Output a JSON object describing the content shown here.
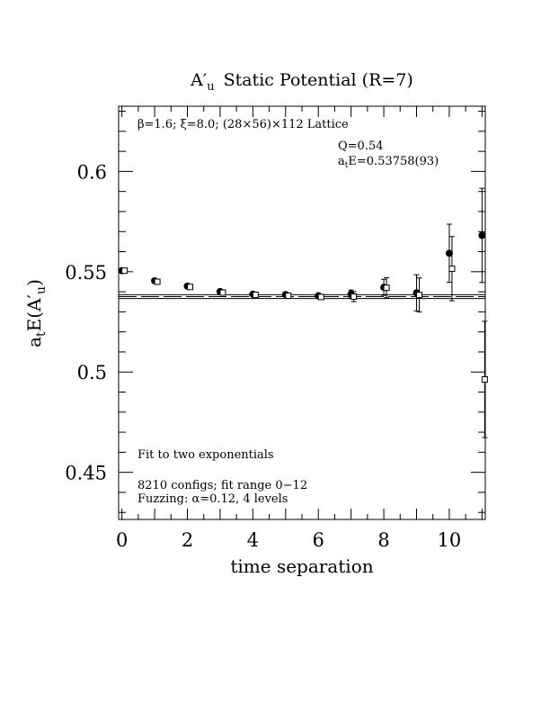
{
  "chart_data": {
    "type": "scatter",
    "title": "A′u Static Potential (R=7)",
    "title_main": "A′",
    "title_sub": "u",
    "title_rest": "Static Potential (R=7)",
    "xlabel": "time separation",
    "ylabel_main": "a",
    "ylabel_sub1": "t",
    "ylabel_mid": "E(A′",
    "ylabel_sub2": "u",
    "ylabel_end": ")",
    "xlim": [
      -0.1,
      11.1
    ],
    "ylim": [
      0.4265,
      0.6325
    ],
    "x_ticks": [
      0,
      2,
      4,
      6,
      8,
      10
    ],
    "y_ticks": [
      0.45,
      0.5,
      0.55,
      0.6
    ],
    "x_tick_labels": [
      "0",
      "2",
      "4",
      "6",
      "8",
      "10"
    ],
    "y_tick_labels": [
      "0.45",
      "0.5",
      "0.55",
      "0.6"
    ],
    "annotations": {
      "lattice": "β=1.6; ξ=8.0; (28×56)×112 Lattice",
      "q_value": "Q=0.54",
      "energy_prefix": "a",
      "energy_sub": "t",
      "energy_value": "E=0.53758(93)",
      "fit_desc": "Fit to two exponentials",
      "configs": "8210 configs; fit range 0−12",
      "fuzzing": "Fuzzing: α=0.12, 4 levels"
    },
    "fit": {
      "value": 0.53758,
      "error": 0.00093
    },
    "series": [
      {
        "marker": "filled-circle",
        "points": [
          {
            "x": 0,
            "y": 0.5505,
            "err": 0.0008
          },
          {
            "x": 1,
            "y": 0.5455,
            "err": 0.0008
          },
          {
            "x": 2,
            "y": 0.5428,
            "err": 0.0008
          },
          {
            "x": 3,
            "y": 0.5401,
            "err": 0.0008
          },
          {
            "x": 4,
            "y": 0.5388,
            "err": 0.0008
          },
          {
            "x": 5,
            "y": 0.5386,
            "err": 0.001
          },
          {
            "x": 6,
            "y": 0.538,
            "err": 0.0012
          },
          {
            "x": 7,
            "y": 0.5389,
            "err": 0.002
          },
          {
            "x": 8,
            "y": 0.5422,
            "err": 0.004
          },
          {
            "x": 9,
            "y": 0.5395,
            "err": 0.009
          },
          {
            "x": 10,
            "y": 0.5592,
            "err": 0.0145
          },
          {
            "x": 11,
            "y": 0.5681,
            "err": 0.0235
          }
        ]
      },
      {
        "marker": "open-square",
        "points": [
          {
            "x": 0,
            "y": 0.5505,
            "err": 0.0007
          },
          {
            "x": 1,
            "y": 0.545,
            "err": 0.0007
          },
          {
            "x": 2,
            "y": 0.5424,
            "err": 0.0007
          },
          {
            "x": 3,
            "y": 0.5396,
            "err": 0.0007
          },
          {
            "x": 4,
            "y": 0.5385,
            "err": 0.0007
          },
          {
            "x": 5,
            "y": 0.538,
            "err": 0.0008
          },
          {
            "x": 6,
            "y": 0.5374,
            "err": 0.0012
          },
          {
            "x": 7,
            "y": 0.5376,
            "err": 0.0025
          },
          {
            "x": 8,
            "y": 0.542,
            "err": 0.005
          },
          {
            "x": 9,
            "y": 0.5384,
            "err": 0.0085
          },
          {
            "x": 10,
            "y": 0.5515,
            "err": 0.016
          },
          {
            "x": 11,
            "y": 0.4963,
            "err": 0.029
          }
        ]
      }
    ]
  }
}
